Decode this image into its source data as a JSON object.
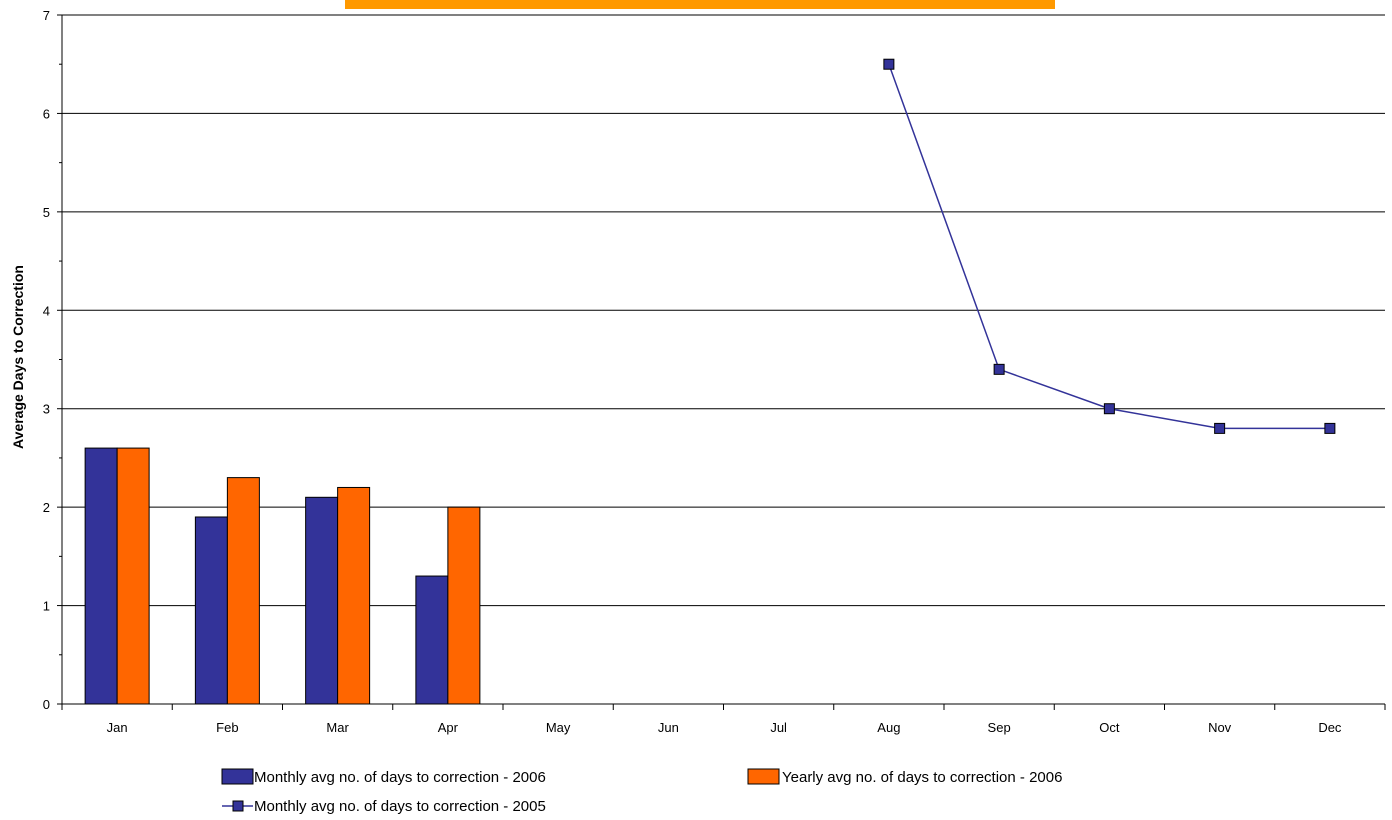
{
  "header_bar": {
    "color": "#FF9900"
  },
  "colors": {
    "monthly_2006": "#333399",
    "yearly_2006": "#FF6600",
    "monthly_2005": "#333399",
    "grid": "#000000",
    "axis": "#000000"
  },
  "chart_data": {
    "type": "bar",
    "categories": [
      "Jan",
      "Feb",
      "Mar",
      "Apr",
      "May",
      "Jun",
      "Jul",
      "Aug",
      "Sep",
      "Oct",
      "Nov",
      "Dec"
    ],
    "series": [
      {
        "name": "Monthly avg no. of days to correction - 2006",
        "type": "bar",
        "values": [
          2.6,
          1.9,
          2.1,
          1.3,
          null,
          null,
          null,
          null,
          null,
          null,
          null,
          null
        ]
      },
      {
        "name": "Yearly avg no. of days to correction - 2006",
        "type": "bar",
        "values": [
          2.6,
          2.3,
          2.2,
          2.0,
          null,
          null,
          null,
          null,
          null,
          null,
          null,
          null
        ]
      },
      {
        "name": "Monthly avg no. of days to correction - 2005",
        "type": "line",
        "marker": "square",
        "values": [
          null,
          null,
          null,
          null,
          null,
          null,
          null,
          6.5,
          3.4,
          3.0,
          2.8,
          2.8
        ]
      }
    ],
    "ylabel": "Average Days to Correction",
    "xlabel": "",
    "ylim": [
      0,
      7
    ],
    "yticks": [
      0,
      1,
      2,
      3,
      4,
      5,
      6,
      7
    ],
    "grid": true,
    "legend_position": "bottom"
  }
}
